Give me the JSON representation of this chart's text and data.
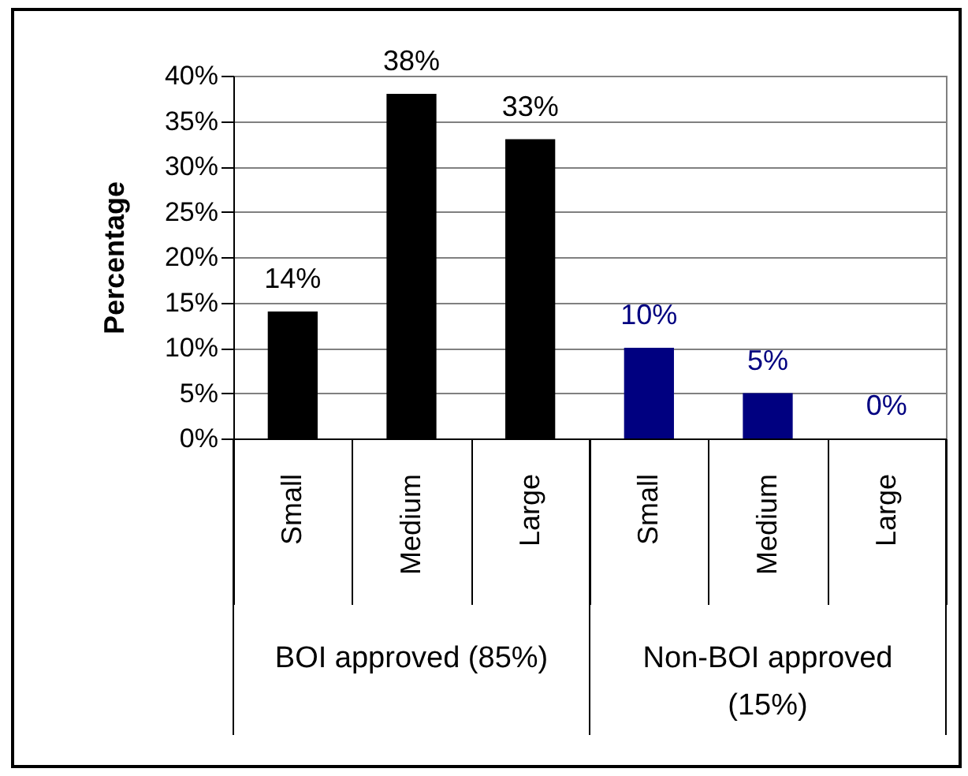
{
  "chart_data": {
    "type": "bar",
    "ylabel": "Percentage",
    "categories": [
      "Small",
      "Medium",
      "Large",
      "Small",
      "Medium",
      "Large"
    ],
    "values": [
      14,
      38,
      33,
      10,
      5,
      0
    ],
    "colors": [
      "#000000",
      "#000000",
      "#000000",
      "#000080",
      "#000080",
      "#000080"
    ],
    "value_labels": [
      "14%",
      "38%",
      "33%",
      "10%",
      "5%",
      "0%"
    ],
    "ylim": [
      0,
      40
    ],
    "yticks": [
      {
        "value": 0,
        "label": "0%"
      },
      {
        "value": 5,
        "label": "5%"
      },
      {
        "value": 10,
        "label": "10%"
      },
      {
        "value": 15,
        "label": "15%"
      },
      {
        "value": 20,
        "label": "20%"
      },
      {
        "value": 25,
        "label": "25%"
      },
      {
        "value": 30,
        "label": "30%"
      },
      {
        "value": 35,
        "label": "35%"
      },
      {
        "value": 40,
        "label": "40%"
      }
    ],
    "grid": "y",
    "annotations": [
      "BOI approved (85%)",
      "Non-BOI approved (15%)"
    ]
  }
}
